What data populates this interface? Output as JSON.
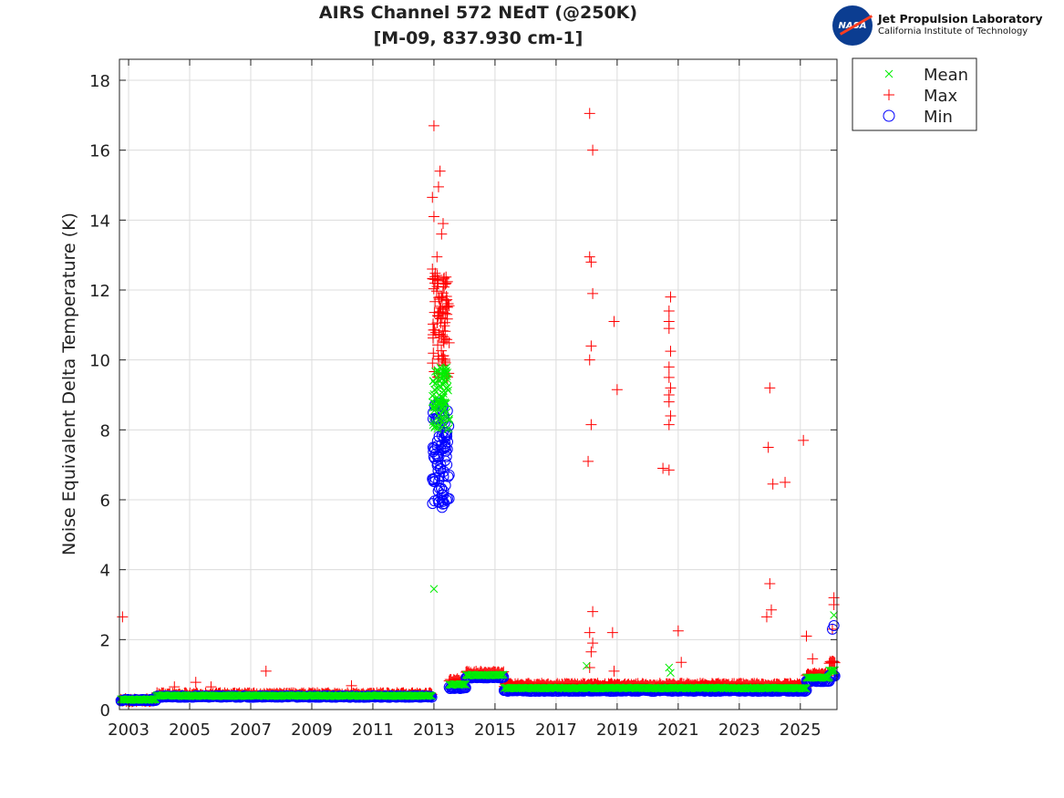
{
  "chart_data": {
    "type": "scatter",
    "title": [
      "AIRS Channel 572 NEdT (@250K)",
      "[M-09, 837.930 cm-1]"
    ],
    "xlabel": "",
    "ylabel": "Noise Equivalent Delta Temperature (K)",
    "xlim": [
      2002.7,
      2026.2
    ],
    "ylim": [
      0,
      18.6
    ],
    "xticks": [
      2003,
      2005,
      2007,
      2009,
      2011,
      2013,
      2015,
      2017,
      2019,
      2021,
      2023,
      2025
    ],
    "yticks": [
      0,
      2,
      4,
      6,
      8,
      10,
      12,
      14,
      16,
      18
    ],
    "grid": true,
    "legend": {
      "placement": "outside-top-right",
      "entries": [
        {
          "name": "Mean",
          "marker": "x",
          "color": "#00ee00"
        },
        {
          "name": "Max",
          "marker": "+",
          "color": "#ff0000"
        },
        {
          "name": "Min",
          "marker": "o",
          "color": "#0000ff"
        }
      ]
    },
    "baseline_segments": [
      {
        "x": [
          2002.75,
          2003.9
        ],
        "min": 0.25,
        "mean": 0.27,
        "max": 0.32
      },
      {
        "x": [
          2003.9,
          2012.95
        ],
        "min": 0.35,
        "mean": 0.38,
        "max": 0.48
      },
      {
        "x": [
          2013.5,
          2014.05
        ],
        "min": 0.6,
        "mean": 0.7,
        "max": 0.88
      },
      {
        "x": [
          2014.05,
          2015.3
        ],
        "min": 0.9,
        "mean": 0.97,
        "max": 1.1
      },
      {
        "x": [
          2015.3,
          2025.2
        ],
        "min": 0.52,
        "mean": 0.6,
        "max": 0.75
      },
      {
        "x": [
          2025.2,
          2025.95
        ],
        "min": 0.8,
        "mean": 0.9,
        "max": 1.05
      },
      {
        "x": [
          2025.95,
          2026.15
        ],
        "min": 0.95,
        "mean": 1.1,
        "max": 1.4
      }
    ],
    "anomaly_2013": {
      "x": [
        2012.95,
        2013.5
      ],
      "min": [
        5.7,
        8.8
      ],
      "mean": [
        8.0,
        9.8
      ],
      "max": [
        9.5,
        12.5
      ]
    },
    "series": [
      {
        "name": "Max",
        "points": [
          [
            2002.8,
            2.65
          ],
          [
            2004.5,
            0.65
          ],
          [
            2005.2,
            0.78
          ],
          [
            2005.7,
            0.65
          ],
          [
            2007.5,
            1.1
          ],
          [
            2010.3,
            0.68
          ],
          [
            2013.0,
            16.7
          ],
          [
            2013.2,
            15.4
          ],
          [
            2013.15,
            14.95
          ],
          [
            2012.95,
            14.65
          ],
          [
            2013.0,
            14.1
          ],
          [
            2013.3,
            13.9
          ],
          [
            2013.25,
            13.6
          ],
          [
            2012.95,
            12.6
          ],
          [
            2013.1,
            12.95
          ],
          [
            2013.4,
            12.2
          ],
          [
            2018.1,
            17.05
          ],
          [
            2018.2,
            16.0
          ],
          [
            2018.1,
            12.95
          ],
          [
            2018.15,
            12.8
          ],
          [
            2018.2,
            11.9
          ],
          [
            2018.15,
            10.4
          ],
          [
            2018.1,
            10.0
          ],
          [
            2018.15,
            8.15
          ],
          [
            2018.05,
            7.1
          ],
          [
            2018.2,
            2.8
          ],
          [
            2018.1,
            2.2
          ],
          [
            2018.2,
            1.9
          ],
          [
            2018.15,
            1.65
          ],
          [
            2018.1,
            1.2
          ],
          [
            2018.9,
            11.1
          ],
          [
            2019.0,
            9.15
          ],
          [
            2018.85,
            2.2
          ],
          [
            2018.9,
            1.1
          ],
          [
            2020.75,
            11.8
          ],
          [
            2020.7,
            11.4
          ],
          [
            2020.7,
            11.1
          ],
          [
            2020.7,
            10.9
          ],
          [
            2020.75,
            10.25
          ],
          [
            2020.7,
            9.8
          ],
          [
            2020.7,
            9.5
          ],
          [
            2020.75,
            9.2
          ],
          [
            2020.7,
            9.0
          ],
          [
            2020.7,
            8.8
          ],
          [
            2020.75,
            8.4
          ],
          [
            2020.7,
            8.15
          ],
          [
            2020.7,
            6.85
          ],
          [
            2020.5,
            6.9
          ],
          [
            2021.0,
            2.25
          ],
          [
            2021.1,
            1.35
          ],
          [
            2024.0,
            9.2
          ],
          [
            2023.95,
            7.5
          ],
          [
            2024.1,
            6.45
          ],
          [
            2024.5,
            6.5
          ],
          [
            2024.0,
            3.6
          ],
          [
            2024.05,
            2.85
          ],
          [
            2023.9,
            2.65
          ],
          [
            2025.1,
            7.7
          ],
          [
            2025.2,
            2.1
          ],
          [
            2025.4,
            1.45
          ],
          [
            2026.1,
            3.2
          ],
          [
            2026.1,
            3.0
          ],
          [
            2026.05,
            2.3
          ]
        ]
      },
      {
        "name": "Mean",
        "points": [
          [
            2013.0,
            3.45
          ],
          [
            2018.0,
            1.25
          ],
          [
            2020.7,
            1.2
          ],
          [
            2020.75,
            1.05
          ],
          [
            2026.1,
            2.7
          ]
        ]
      },
      {
        "name": "Min",
        "points": [
          [
            2026.1,
            2.4
          ],
          [
            2026.05,
            2.3
          ]
        ]
      }
    ]
  },
  "logo": {
    "line1": "Jet Propulsion Laboratory",
    "line2": "California Institute of Technology",
    "mark": "NASA"
  }
}
